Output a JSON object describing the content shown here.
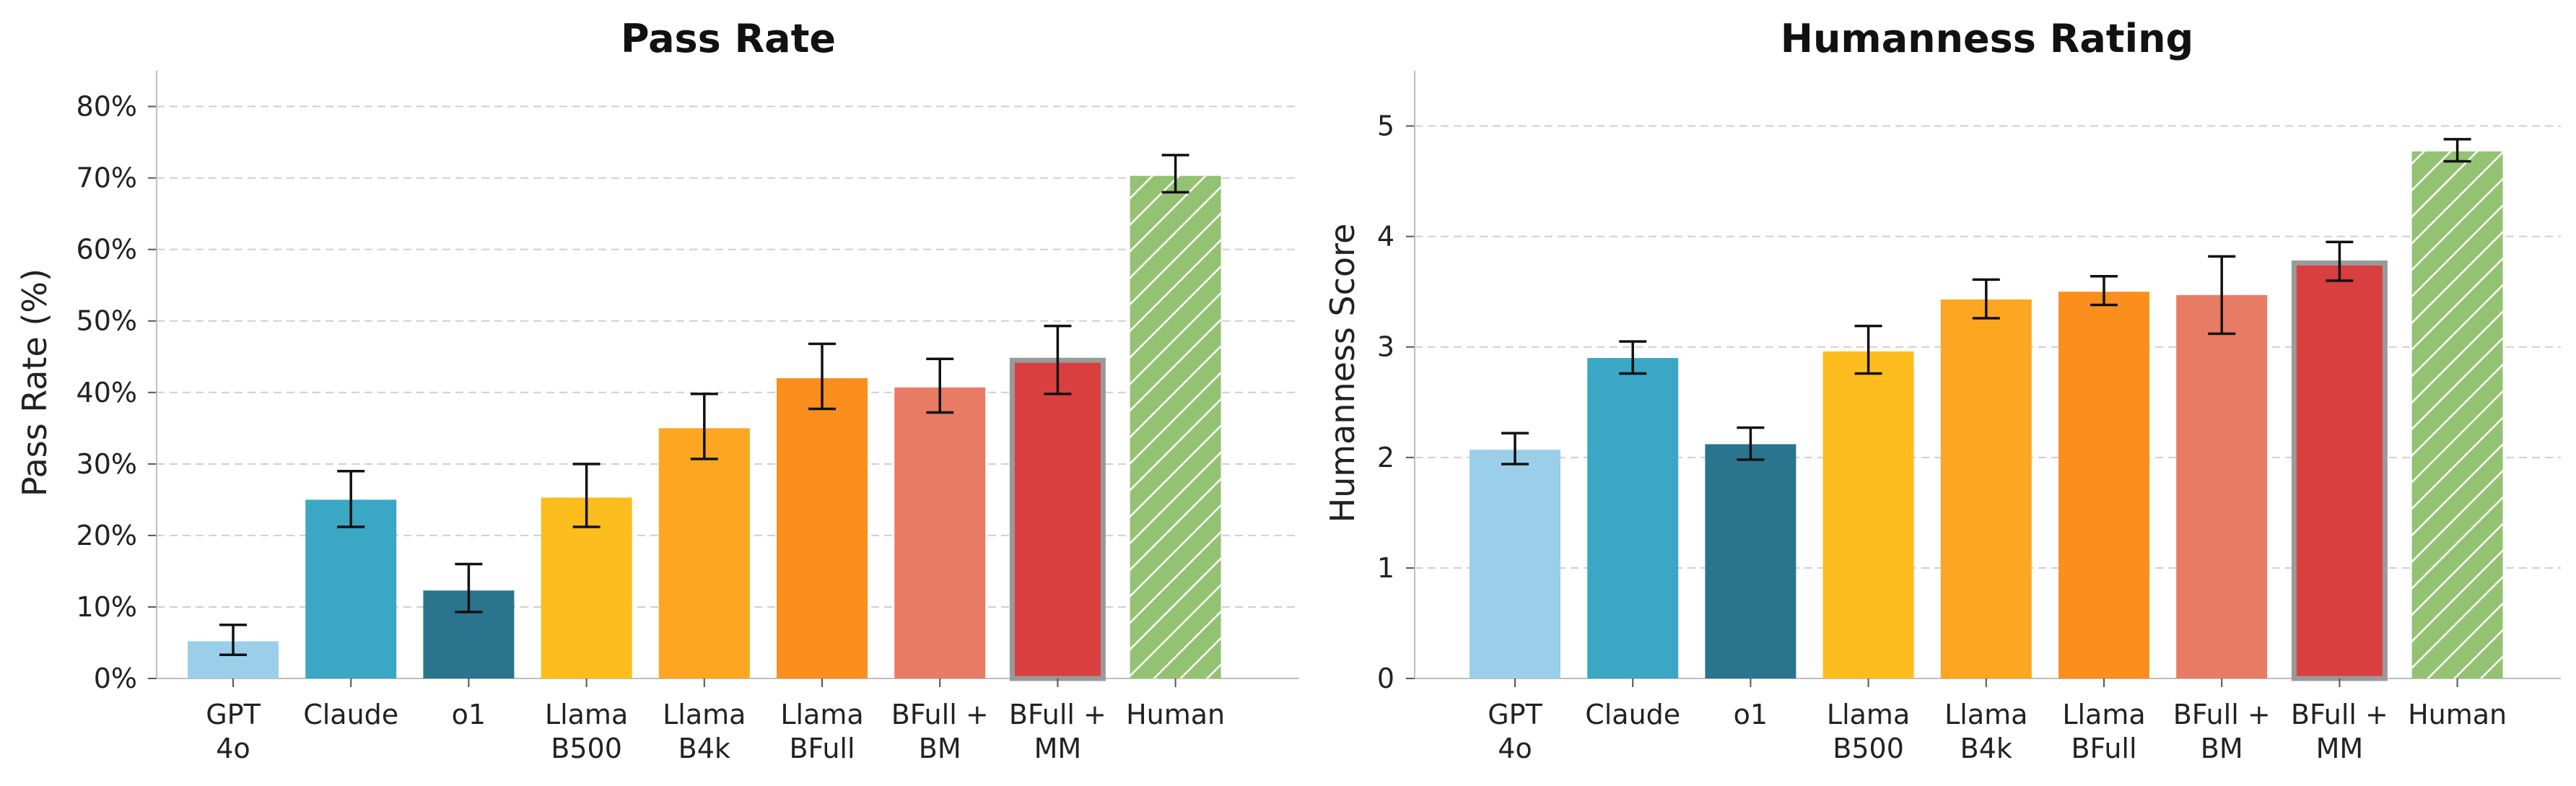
{
  "chart_data": [
    {
      "type": "bar",
      "title": "Pass Rate",
      "ylabel": "Pass Rate (%)",
      "ylim": [
        0,
        85
      ],
      "yticks": [
        0,
        10,
        20,
        30,
        40,
        50,
        60,
        70,
        80
      ],
      "ytick_labels": [
        "0%",
        "10%",
        "20%",
        "30%",
        "40%",
        "50%",
        "60%",
        "70%",
        "80%"
      ],
      "grid": true,
      "categories": [
        [
          "GPT",
          "4o"
        ],
        [
          "Claude"
        ],
        [
          "o1"
        ],
        [
          "Llama",
          "B500"
        ],
        [
          "Llama",
          "B4k"
        ],
        [
          "Llama",
          "BFull"
        ],
        [
          "BFull +",
          "BM"
        ],
        [
          "BFull +",
          "MM"
        ],
        [
          "Human"
        ]
      ],
      "values": [
        5.2,
        25,
        12.3,
        25.3,
        35,
        42,
        40.7,
        44.5,
        70.3
      ],
      "error_low": [
        3.3,
        21.2,
        9.3,
        21.2,
        30.7,
        37.7,
        37.2,
        39.8,
        68
      ],
      "error_high": [
        7.5,
        29,
        16,
        30,
        39.8,
        46.8,
        44.7,
        49.3,
        73.2
      ],
      "colors": [
        "#9bcfe9",
        "#3aa8c4",
        "#2a758d",
        "#fdbd1f",
        "#fca622",
        "#fa8f1d",
        "#e87b64",
        "#d93f3f",
        "#94c273"
      ],
      "highlight_index": 7,
      "hatched_index": 8
    },
    {
      "type": "bar",
      "title": "Humanness Rating",
      "ylabel": "Humanness Score",
      "ylim": [
        0,
        5.5
      ],
      "yticks": [
        0,
        1,
        2,
        3,
        4,
        5
      ],
      "ytick_labels": [
        "0",
        "1",
        "2",
        "3",
        "4",
        "5"
      ],
      "grid": true,
      "categories": [
        [
          "GPT",
          "4o"
        ],
        [
          "Claude"
        ],
        [
          "o1"
        ],
        [
          "Llama",
          "B500"
        ],
        [
          "Llama",
          "B4k"
        ],
        [
          "Llama",
          "BFull"
        ],
        [
          "BFull +",
          "BM"
        ],
        [
          "BFull +",
          "MM"
        ],
        [
          "Human"
        ]
      ],
      "values": [
        2.07,
        2.9,
        2.12,
        2.96,
        3.43,
        3.5,
        3.47,
        3.76,
        4.77
      ],
      "error_low": [
        1.94,
        2.76,
        1.98,
        2.76,
        3.26,
        3.38,
        3.12,
        3.6,
        4.68
      ],
      "error_high": [
        2.22,
        3.05,
        2.27,
        3.19,
        3.61,
        3.64,
        3.82,
        3.95,
        4.88
      ],
      "colors": [
        "#9bcfe9",
        "#3aa8c4",
        "#2a758d",
        "#fdbd1f",
        "#fca622",
        "#fa8f1d",
        "#e87b64",
        "#d93f3f",
        "#94c273"
      ],
      "highlight_index": 7,
      "hatched_index": 8
    }
  ]
}
